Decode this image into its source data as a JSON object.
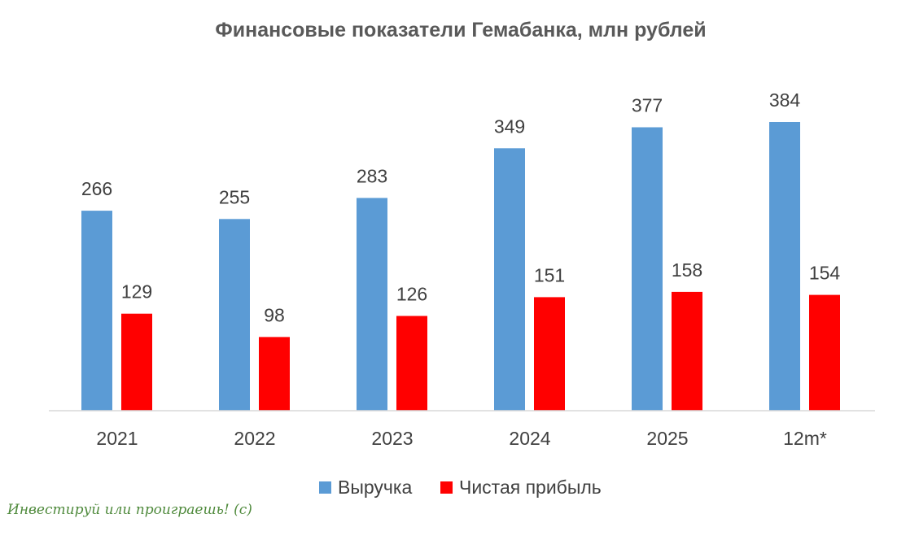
{
  "chart_data": {
    "type": "bar",
    "title": "Финансовые показатели Гемабанка, млн рублей",
    "categories": [
      "2021",
      "2022",
      "2023",
      "2024",
      "2025",
      "12m*"
    ],
    "series": [
      {
        "name": "Выручка",
        "color": "#5b9bd5",
        "values": [
          266,
          255,
          283,
          349,
          377,
          384
        ]
      },
      {
        "name": "Чистая прибыль",
        "color": "#ff0000",
        "values": [
          129,
          98,
          126,
          151,
          158,
          154
        ]
      }
    ],
    "xlabel": "",
    "ylabel": "",
    "ylim": [
      0,
      420
    ],
    "grid": false,
    "legend_position": "bottom",
    "data_labels": true
  },
  "watermark": {
    "text": "Инвестируй или проиграешь! (с)",
    "color": "#4f8a3c"
  }
}
